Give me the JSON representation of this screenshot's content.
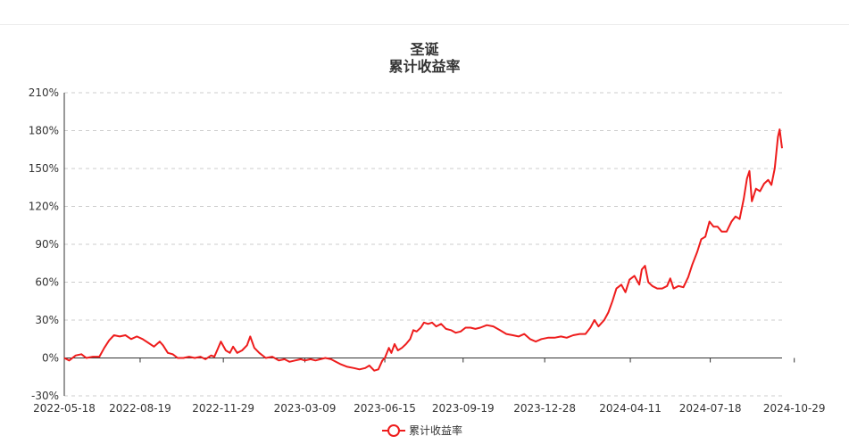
{
  "chart_data": {
    "type": "line",
    "title": "圣诞",
    "subtitle": "累计收益率",
    "xlabel": "",
    "ylabel": "",
    "ylim": [
      -30,
      210
    ],
    "yticks": [
      "-30%",
      "0%",
      "30%",
      "60%",
      "90%",
      "120%",
      "150%",
      "180%",
      "210%"
    ],
    "ytick_values": [
      -30,
      0,
      30,
      60,
      90,
      120,
      150,
      180,
      210
    ],
    "xticks": [
      "2022-05-18",
      "2022-08-19",
      "2022-11-29",
      "2023-03-09",
      "2023-06-15",
      "2023-09-19",
      "2023-12-28",
      "2024-04-11",
      "2024-07-18",
      "2024-10-29"
    ],
    "grid": true,
    "legend_position": "bottom-center",
    "series": [
      {
        "name": "累计收益率",
        "color": "#ee1c1c",
        "points": [
          [
            "2022-05-18",
            0
          ],
          [
            "2022-05-24",
            -2
          ],
          [
            "2022-06-01",
            2
          ],
          [
            "2022-06-08",
            3
          ],
          [
            "2022-06-14",
            0
          ],
          [
            "2022-06-22",
            1
          ],
          [
            "2022-06-30",
            1
          ],
          [
            "2022-07-06",
            8
          ],
          [
            "2022-07-12",
            14
          ],
          [
            "2022-07-18",
            18
          ],
          [
            "2022-07-25",
            17
          ],
          [
            "2022-08-01",
            18
          ],
          [
            "2022-08-08",
            15
          ],
          [
            "2022-08-15",
            17
          ],
          [
            "2022-08-22",
            15
          ],
          [
            "2022-08-29",
            12
          ],
          [
            "2022-09-05",
            9
          ],
          [
            "2022-09-12",
            13
          ],
          [
            "2022-09-16",
            10
          ],
          [
            "2022-09-22",
            4
          ],
          [
            "2022-09-28",
            3
          ],
          [
            "2022-10-04",
            0
          ],
          [
            "2022-10-11",
            0
          ],
          [
            "2022-10-18",
            1
          ],
          [
            "2022-10-25",
            0
          ],
          [
            "2022-11-01",
            1
          ],
          [
            "2022-11-07",
            -1
          ],
          [
            "2022-11-14",
            2
          ],
          [
            "2022-11-18",
            1
          ],
          [
            "2022-11-22",
            7
          ],
          [
            "2022-11-26",
            13
          ],
          [
            "2022-12-02",
            6
          ],
          [
            "2022-12-07",
            4
          ],
          [
            "2022-12-11",
            9
          ],
          [
            "2022-12-16",
            4
          ],
          [
            "2022-12-22",
            6
          ],
          [
            "2022-12-28",
            10
          ],
          [
            "2023-01-01",
            17
          ],
          [
            "2023-01-06",
            8
          ],
          [
            "2023-01-12",
            4
          ],
          [
            "2023-01-20",
            0
          ],
          [
            "2023-01-28",
            1
          ],
          [
            "2023-02-05",
            -2
          ],
          [
            "2023-02-12",
            -1
          ],
          [
            "2023-02-18",
            -3
          ],
          [
            "2023-02-25",
            -2
          ],
          [
            "2023-03-04",
            -1
          ],
          [
            "2023-03-09",
            -2
          ],
          [
            "2023-03-16",
            -1
          ],
          [
            "2023-03-22",
            -2
          ],
          [
            "2023-03-28",
            -1
          ],
          [
            "2023-04-03",
            0
          ],
          [
            "2023-04-10",
            -1
          ],
          [
            "2023-04-16",
            -3
          ],
          [
            "2023-04-22",
            -5
          ],
          [
            "2023-04-30",
            -7
          ],
          [
            "2023-05-08",
            -8
          ],
          [
            "2023-05-15",
            -9
          ],
          [
            "2023-05-22",
            -8
          ],
          [
            "2023-05-27",
            -6
          ],
          [
            "2023-06-02",
            -10
          ],
          [
            "2023-06-07",
            -9
          ],
          [
            "2023-06-12",
            -2
          ],
          [
            "2023-06-15",
            0
          ],
          [
            "2023-06-20",
            8
          ],
          [
            "2023-06-23",
            4
          ],
          [
            "2023-06-27",
            11
          ],
          [
            "2023-07-01",
            6
          ],
          [
            "2023-07-06",
            8
          ],
          [
            "2023-07-11",
            11
          ],
          [
            "2023-07-16",
            15
          ],
          [
            "2023-07-20",
            22
          ],
          [
            "2023-07-24",
            21
          ],
          [
            "2023-07-29",
            24
          ],
          [
            "2023-08-02",
            28
          ],
          [
            "2023-08-07",
            27
          ],
          [
            "2023-08-12",
            28
          ],
          [
            "2023-08-17",
            25
          ],
          [
            "2023-08-23",
            27
          ],
          [
            "2023-08-29",
            23
          ],
          [
            "2023-09-04",
            22
          ],
          [
            "2023-09-10",
            20
          ],
          [
            "2023-09-16",
            21
          ],
          [
            "2023-09-22",
            24
          ],
          [
            "2023-09-28",
            24
          ],
          [
            "2023-10-04",
            23
          ],
          [
            "2023-10-10",
            24
          ],
          [
            "2023-10-18",
            26
          ],
          [
            "2023-10-26",
            25
          ],
          [
            "2023-11-03",
            22
          ],
          [
            "2023-11-11",
            19
          ],
          [
            "2023-11-19",
            18
          ],
          [
            "2023-11-26",
            17
          ],
          [
            "2023-12-03",
            19
          ],
          [
            "2023-12-10",
            15
          ],
          [
            "2023-12-17",
            13
          ],
          [
            "2023-12-24",
            15
          ],
          [
            "2024-01-01",
            16
          ],
          [
            "2024-01-09",
            16
          ],
          [
            "2024-01-17",
            17
          ],
          [
            "2024-01-24",
            16
          ],
          [
            "2024-02-01",
            18
          ],
          [
            "2024-02-09",
            19
          ],
          [
            "2024-02-16",
            19
          ],
          [
            "2024-02-22",
            24
          ],
          [
            "2024-02-27",
            30
          ],
          [
            "2024-03-03",
            25
          ],
          [
            "2024-03-10",
            30
          ],
          [
            "2024-03-15",
            36
          ],
          [
            "2024-03-20",
            45
          ],
          [
            "2024-03-25",
            55
          ],
          [
            "2024-03-31",
            58
          ],
          [
            "2024-04-05",
            52
          ],
          [
            "2024-04-10",
            62
          ],
          [
            "2024-04-16",
            65
          ],
          [
            "2024-04-22",
            58
          ],
          [
            "2024-04-25",
            70
          ],
          [
            "2024-04-29",
            73
          ],
          [
            "2024-05-03",
            60
          ],
          [
            "2024-05-08",
            57
          ],
          [
            "2024-05-14",
            55
          ],
          [
            "2024-05-20",
            55
          ],
          [
            "2024-05-26",
            57
          ],
          [
            "2024-05-30",
            63
          ],
          [
            "2024-06-03",
            55
          ],
          [
            "2024-06-09",
            57
          ],
          [
            "2024-06-15",
            56
          ],
          [
            "2024-06-21",
            64
          ],
          [
            "2024-06-26",
            74
          ],
          [
            "2024-07-02",
            84
          ],
          [
            "2024-07-07",
            94
          ],
          [
            "2024-07-12",
            96
          ],
          [
            "2024-07-17",
            108
          ],
          [
            "2024-07-22",
            104
          ],
          [
            "2024-07-27",
            104
          ],
          [
            "2024-08-01",
            100
          ],
          [
            "2024-08-07",
            100
          ],
          [
            "2024-08-13",
            108
          ],
          [
            "2024-08-18",
            112
          ],
          [
            "2024-08-23",
            110
          ],
          [
            "2024-08-28",
            126
          ],
          [
            "2024-09-01",
            142
          ],
          [
            "2024-09-04",
            148
          ],
          [
            "2024-09-07",
            124
          ],
          [
            "2024-09-12",
            134
          ],
          [
            "2024-09-17",
            132
          ],
          [
            "2024-09-22",
            138
          ],
          [
            "2024-09-27",
            141
          ],
          [
            "2024-10-01",
            137
          ],
          [
            "2024-10-05",
            150
          ],
          [
            "2024-10-09",
            175
          ],
          [
            "2024-10-11",
            181
          ],
          [
            "2024-10-14",
            166
          ]
        ]
      }
    ]
  },
  "legend": {
    "label": "累计收益率"
  }
}
